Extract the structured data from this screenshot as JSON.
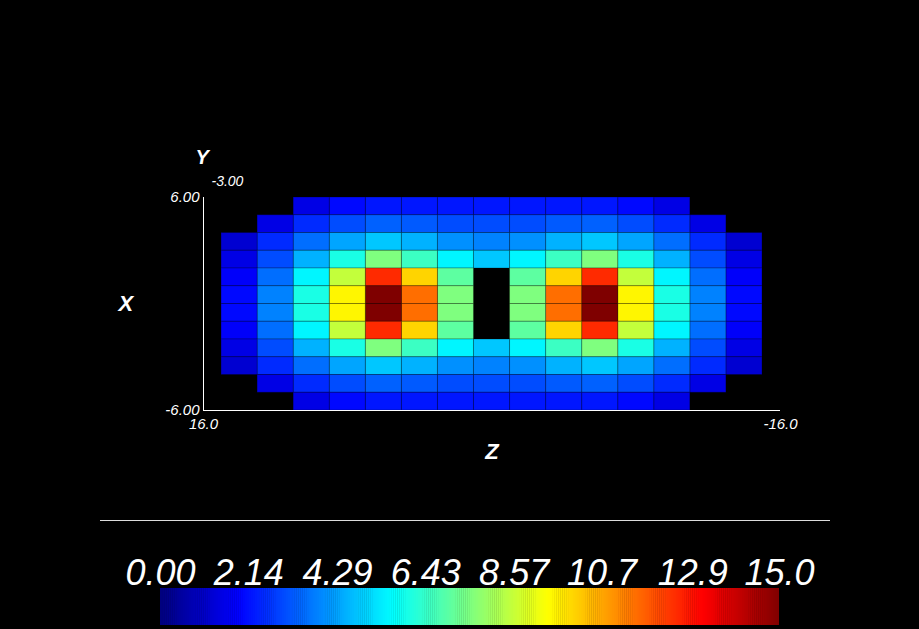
{
  "chart_data": {
    "type": "heatmap",
    "xlabel": "Z",
    "ylabel": "X",
    "depth_label": "Y",
    "depth_ticks": [
      {
        "value": -3,
        "label": "-3.00"
      }
    ],
    "xlim": [
      16,
      -16
    ],
    "xticks": [
      {
        "value": 16,
        "label": "16.0"
      },
      {
        "value": -16,
        "label": "-16.0"
      }
    ],
    "ylim": [
      -6,
      6
    ],
    "yticks": [
      {
        "value": -6,
        "label": "-6.00"
      },
      {
        "value": 6,
        "label": "6.00"
      }
    ],
    "color": "jet",
    "colorbar": {
      "range": [
        0,
        15
      ],
      "ticks": [
        {
          "value": 0,
          "label": "0.00"
        },
        2.14,
        4.29,
        6.43,
        8.57,
        10.7,
        12.9,
        {
          "value": 15,
          "label": "15.0"
        }
      ]
    },
    "x_edges": [
      -15,
      -13,
      -11,
      -9,
      -7,
      -5,
      -3,
      -1,
      1,
      3,
      5,
      7,
      9,
      11,
      13,
      15
    ],
    "y_edges": [
      6,
      5,
      4,
      3,
      2,
      1,
      0,
      -1,
      -2,
      -3,
      -4,
      -5,
      -6
    ],
    "cells": [
      [
        null,
        null,
        1.5,
        2,
        2.2,
        2.2,
        2.2,
        2.2,
        2.2,
        2.2,
        2.2,
        2,
        1.5,
        null,
        null
      ],
      [
        null,
        1.5,
        2.5,
        3,
        3.3,
        3.2,
        3,
        3,
        3,
        3.2,
        3.3,
        3,
        2.5,
        1.5,
        null
      ],
      [
        1.2,
        2.5,
        3.5,
        4.3,
        4.8,
        4.5,
        4,
        3.8,
        4,
        4.5,
        4.8,
        4.3,
        3.5,
        2.5,
        1.2
      ],
      [
        1.5,
        3,
        4.5,
        6,
        7.5,
        6.5,
        5.5,
        4.8,
        5.5,
        6.5,
        7.5,
        6,
        4.5,
        3,
        1.5
      ],
      [
        1.8,
        3.5,
        5.5,
        8.5,
        12.5,
        10,
        7,
        null,
        7,
        10,
        12.5,
        8.5,
        5.5,
        3.5,
        1.8
      ],
      [
        2,
        3.8,
        6,
        9.5,
        15,
        11.5,
        7.5,
        null,
        7.5,
        11.5,
        15,
        9.5,
        6,
        3.8,
        2
      ],
      [
        2,
        3.8,
        6,
        9.5,
        15,
        11.5,
        7.5,
        null,
        7.5,
        11.5,
        15,
        9.5,
        6,
        3.8,
        2
      ],
      [
        1.8,
        3.5,
        5.5,
        8.5,
        12.5,
        10,
        7,
        null,
        7,
        10,
        12.5,
        8.5,
        5.5,
        3.5,
        1.8
      ],
      [
        1.5,
        3,
        4.5,
        6,
        7.5,
        6.5,
        5.5,
        4.8,
        5.5,
        6.5,
        7.5,
        6,
        4.5,
        3,
        1.5
      ],
      [
        1.2,
        2.5,
        3.5,
        4.3,
        4.8,
        4.5,
        4,
        3.8,
        4,
        4.5,
        4.8,
        4.3,
        3.5,
        2.5,
        1.2
      ],
      [
        null,
        1.5,
        2.5,
        3,
        3.3,
        3.2,
        3,
        3,
        3,
        3.2,
        3.3,
        3,
        2.5,
        1.5,
        null
      ],
      [
        null,
        null,
        1.5,
        2,
        2.2,
        2.2,
        2.2,
        2.2,
        2.2,
        2.2,
        2.2,
        2,
        1.5,
        null,
        null
      ]
    ]
  }
}
